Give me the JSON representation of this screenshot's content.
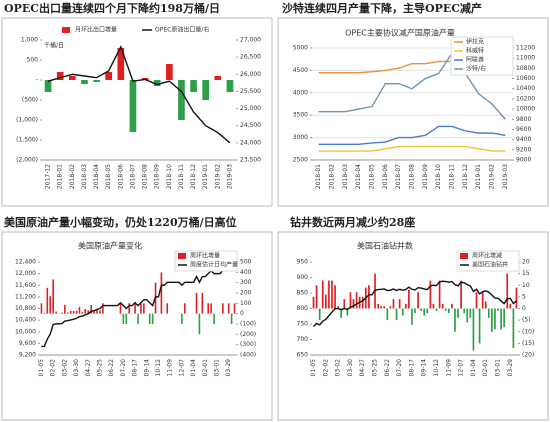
{
  "chart_data": [
    {
      "type": "combo",
      "heading": "OPEC出口量连续四个月下降约198万桶/日",
      "y_unit": "千桶/日",
      "legend": "top",
      "categories": [
        "2017-12",
        "2018-01",
        "2018-02",
        "2018-03",
        "2018-04",
        "2018-05",
        "2018-06",
        "2018-07",
        "2018-08",
        "2018-09",
        "2018-10",
        "2018-11",
        "2018-12",
        "2019-01",
        "2019-02",
        "2019-03"
      ],
      "ylim": [
        -2000,
        1000
      ],
      "yticks": [
        {
          "value": 1000,
          "label": "1,000"
        },
        500,
        {
          "value": 0,
          "label": "-"
        },
        {
          "value": -500,
          "label": "(500)"
        },
        {
          "value": -1000,
          "label": "(1,000)"
        },
        {
          "value": -1500,
          "label": "(1,500)"
        },
        {
          "value": -2000,
          "label": "(2,000)"
        }
      ],
      "y2lim": [
        23500,
        27000
      ],
      "y2ticks": [
        {
          "value": 27000,
          "label": "27,000"
        },
        {
          "value": 26500,
          "label": "26,500"
        },
        {
          "value": 26000,
          "label": "26,000"
        },
        {
          "value": 25500,
          "label": "25,500"
        },
        {
          "value": 25000,
          "label": "25,000"
        },
        {
          "value": 24500,
          "label": "24,500"
        },
        {
          "value": 24000,
          "label": "24,000"
        },
        {
          "value": 23500,
          "label": "23,500"
        }
      ],
      "grid": false,
      "series": [
        {
          "name": "月环比出口增量",
          "kind": "bar",
          "color": "#e02020",
          "negative_color": "#2e9e48",
          "values": [
            -300,
            200,
            100,
            -100,
            -50,
            200,
            800,
            -1300,
            50,
            -150,
            400,
            -1000,
            -300,
            -500,
            100,
            -300
          ]
        },
        {
          "name": "OPEC原油出口量/右",
          "kind": "line",
          "axis": "y2",
          "color": "#111111",
          "values": [
            25800,
            25900,
            26000,
            25950,
            25900,
            26100,
            26800,
            25800,
            25850,
            25700,
            25800,
            25500,
            24900,
            24500,
            24300,
            24000
          ]
        }
      ]
    },
    {
      "type": "line",
      "heading": "沙特连续四月产量下降，主导OPEC减产",
      "title": "OPEC主要协议减产国原油产量",
      "legend": "upper right",
      "categories": [
        "2018-01",
        "2018-02",
        "2018-03",
        "2018-04",
        "2018-05",
        "2018-06",
        "2018-07",
        "2018-08",
        "2018-09",
        "2018-10",
        "2018-11",
        "2018-12",
        "2019-01",
        "2019-02",
        "2019-03"
      ],
      "ylim": [
        2500,
        5000
      ],
      "yticks": [
        5000,
        4500,
        4000,
        3500,
        3000,
        2500
      ],
      "y2lim": [
        9000,
        11200
      ],
      "y2ticks": [
        11200,
        11000,
        10800,
        10600,
        10400,
        10200,
        10000,
        9800,
        9600,
        9400,
        9200,
        9000
      ],
      "grid": true,
      "series": [
        {
          "name": "伊拉克",
          "kind": "line",
          "color": "#e8923a",
          "values": [
            4450,
            4450,
            4450,
            4450,
            4470,
            4500,
            4550,
            4650,
            4650,
            4700,
            4700,
            4700,
            4650,
            4600,
            4550
          ]
        },
        {
          "name": "科威特",
          "kind": "line",
          "color": "#f0c330",
          "values": [
            2700,
            2700,
            2700,
            2700,
            2700,
            2750,
            2800,
            2800,
            2800,
            2800,
            2800,
            2800,
            2750,
            2700,
            2700
          ]
        },
        {
          "name": "阿联酋",
          "kind": "line",
          "color": "#4a7bc8",
          "values": [
            2850,
            2850,
            2850,
            2850,
            2880,
            2900,
            3000,
            3000,
            3050,
            3250,
            3250,
            3150,
            3100,
            3100,
            3050
          ]
        },
        {
          "name": "沙特/右",
          "kind": "line",
          "axis": "y2",
          "color": "#6f93b6",
          "values": [
            9950,
            9950,
            9950,
            10000,
            10050,
            10500,
            10500,
            10400,
            10600,
            10700,
            11100,
            10700,
            10300,
            10100,
            9800
          ]
        }
      ]
    },
    {
      "type": "combo",
      "heading": "美国原油产量小幅变动，仍处1220万桶/日高位",
      "title": "美国原油产量变化",
      "legend": "upper right",
      "categories": [
        "01-05",
        null,
        null,
        null,
        "02-02",
        null,
        null,
        null,
        "03-02",
        null,
        null,
        null,
        "03-30",
        null,
        null,
        null,
        "04-27",
        null,
        null,
        null,
        "05-25",
        null,
        null,
        null,
        "06-22",
        null,
        null,
        null,
        "07-20",
        null,
        null,
        null,
        "08-17",
        null,
        null,
        null,
        "09-14",
        null,
        null,
        null,
        "10-12",
        null,
        null,
        null,
        "11-09",
        null,
        null,
        null,
        "12-07",
        null,
        null,
        null,
        "01-04",
        null,
        null,
        null,
        "02-01",
        null,
        null,
        null,
        "03-01",
        null,
        null,
        null,
        "03-29",
        null,
        null
      ],
      "ylim": [
        9200,
        12400
      ],
      "yticks": [
        {
          "value": 12400,
          "label": "12,400"
        },
        {
          "value": 12000,
          "label": "12,000"
        },
        {
          "value": 11600,
          "label": "11,600"
        },
        {
          "value": 11200,
          "label": "11,200"
        },
        {
          "value": 10800,
          "label": "10,800"
        },
        {
          "value": 10400,
          "label": "10,400"
        },
        {
          "value": 10000,
          "label": "10,000"
        },
        {
          "value": 9600,
          "label": "9,600"
        },
        {
          "value": 9200,
          "label": "9,200"
        }
      ],
      "y2lim": [
        -400,
        500
      ],
      "y2ticks": [
        500,
        400,
        300,
        200,
        100,
        0,
        {
          "value": -100,
          "label": "(100)"
        },
        {
          "value": -200,
          "label": "(200)"
        },
        {
          "value": -300,
          "label": "(300)"
        },
        {
          "value": -400,
          "label": "(400)"
        }
      ],
      "grid": false,
      "series": [
        {
          "name": "周环比增量",
          "kind": "bar",
          "axis": "y2",
          "color": "#e02020",
          "negative_color": "#2e9e48",
          "values": [
            100,
            8,
            250,
            169,
            331,
            21,
            2,
            10,
            86,
            12,
            26,
            26,
            27,
            65,
            15,
            46,
            33,
            84,
            22,
            44,
            31,
            100,
            0,
            0,
            0,
            0,
            0,
            100,
            -100,
            -100,
            100,
            0,
            100,
            -100,
            100,
            100,
            0,
            -100,
            -100,
            300,
            0,
            400,
            0,
            100,
            0,
            0,
            0,
            0,
            -100,
            100,
            0,
            0,
            0,
            200,
            -200,
            200,
            0,
            100,
            100,
            -100,
            0,
            0,
            100,
            0,
            100,
            -100,
            100
          ]
        },
        {
          "name": "周度估计日均产量",
          "kind": "line",
          "color": "#111111",
          "values": [
            9492,
            9500,
            9750,
            9919,
            10250,
            10271,
            10273,
            10283,
            10369,
            10381,
            10407,
            10433,
            10460,
            10525,
            10540,
            10586,
            10619,
            10703,
            10725,
            10769,
            10800,
            10900,
            10900,
            10900,
            10900,
            10900,
            10900,
            11000,
            10900,
            10800,
            10900,
            10900,
            11000,
            10900,
            11000,
            11100,
            11100,
            11000,
            10900,
            11200,
            11200,
            11600,
            11600,
            11700,
            11700,
            11700,
            11700,
            11700,
            11600,
            11700,
            11700,
            11700,
            11700,
            11900,
            11700,
            11900,
            11900,
            12000,
            12100,
            12000,
            12000,
            12000,
            12100,
            12100,
            12200,
            12100,
            12200
          ]
        }
      ]
    },
    {
      "type": "combo",
      "heading": "钻井数近两月减少约28座",
      "title": "美国石油钻井数",
      "legend": "upper right",
      "categories": [
        "01-05",
        null,
        null,
        null,
        "02-02",
        null,
        null,
        null,
        "03-02",
        null,
        null,
        null,
        "03-30",
        null,
        null,
        null,
        "04-27",
        null,
        null,
        null,
        "05-25",
        null,
        null,
        null,
        "06-22",
        null,
        null,
        null,
        "07-20",
        null,
        null,
        null,
        "08-17",
        null,
        null,
        null,
        "09-14",
        null,
        null,
        null,
        "10-12",
        null,
        null,
        null,
        "11-09",
        null,
        null,
        null,
        "12-07",
        null,
        null,
        null,
        "01-04",
        null,
        null,
        null,
        "02-01",
        null,
        null,
        null,
        "03-01",
        null,
        null,
        null,
        "03-29",
        null,
        null
      ],
      "ylim": [
        650,
        950
      ],
      "yticks": [
        950,
        900,
        850,
        800,
        750,
        700,
        650
      ],
      "y2lim": [
        -20,
        20
      ],
      "y2ticks": [
        20,
        15,
        10,
        5,
        0,
        {
          "value": -5,
          "label": "(5)"
        },
        {
          "value": -10,
          "label": "(10)"
        },
        {
          "value": -15,
          "label": "(15)"
        },
        {
          "value": -20,
          "label": "(20)"
        }
      ],
      "grid": false,
      "series": [
        {
          "name": "周环比增减",
          "kind": "bar",
          "axis": "y2",
          "color": "#e02020",
          "negative_color": "#2e9e48",
          "values": [
            5,
            10,
            -5,
            12,
            6,
            12,
            12,
            10,
            1,
            -4,
            4,
            -3,
            7,
            4,
            7,
            5,
            5,
            9,
            10,
            0,
            15,
            2,
            1,
            1,
            -5,
            1,
            4,
            -5,
            4,
            -3,
            2,
            8,
            -7,
            -2,
            7,
            -1,
            -3,
            -2,
            12,
            2,
            -1,
            12,
            2,
            -1,
            -2,
            2,
            -10,
            -4,
            12,
            -2,
            -6,
            -4,
            -18,
            7,
            -15,
            7,
            3,
            -4,
            -10,
            -9,
            -1,
            -9,
            -8,
            15,
            2,
            -17,
            9
          ]
        },
        {
          "name": "美国石油钻井",
          "kind": "line",
          "color": "#111111",
          "values": [
            742,
            752,
            747,
            759,
            765,
            777,
            789,
            799,
            800,
            796,
            800,
            797,
            804,
            808,
            815,
            820,
            825,
            834,
            844,
            844,
            859,
            861,
            862,
            863,
            858,
            859,
            863,
            858,
            862,
            859,
            861,
            869,
            862,
            860,
            867,
            866,
            863,
            861,
            873,
            875,
            874,
            886,
            888,
            887,
            885,
            887,
            877,
            873,
            885,
            883,
            877,
            873,
            855,
            862,
            847,
            854,
            857,
            853,
            843,
            834,
            833,
            824,
            816,
            831,
            833,
            816,
            825
          ]
        }
      ]
    }
  ]
}
